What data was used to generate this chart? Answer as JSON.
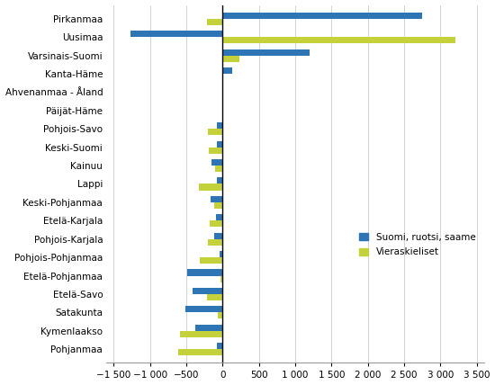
{
  "categories": [
    "Pirkanmaa",
    "Uusimaa",
    "Varsinais-Suomi",
    "Kanta-Häme",
    "Ahvenanmaa - Åland",
    "Päijät-Häme",
    "Pohjois-Savo",
    "Keski-Suomi",
    "Kainuu",
    "Lappi",
    "Keski-Pohjanmaa",
    "Etelä-Karjala",
    "Pohjois-Karjala",
    "Pohjois-Pohjanmaa",
    "Etelä-Pohjanmaa",
    "Etelä-Savo",
    "Satakunta",
    "Kymenlaakso",
    "Pohjanmaa"
  ],
  "suomi": [
    2750,
    -1270,
    1200,
    125,
    0,
    0,
    -75,
    -80,
    -155,
    -85,
    -170,
    -90,
    -120,
    -45,
    -490,
    -420,
    -510,
    -380,
    -85
  ],
  "vieras": [
    -215,
    3200,
    235,
    12,
    3,
    -2,
    -205,
    -195,
    -100,
    -325,
    -120,
    -175,
    -200,
    -310,
    -35,
    -215,
    -70,
    -590,
    -610
  ],
  "color_suomi": "#2E75B6",
  "color_vieras": "#C5D13B",
  "legend_suomi": "Suomi, ruotsi, saame",
  "legend_vieras": "Vieraskieliset",
  "background_color": "#ffffff",
  "xlim": [
    -1600,
    3600
  ],
  "xticks": [
    -1500,
    -1000,
    -500,
    0,
    500,
    1000,
    1500,
    2000,
    2500,
    3000,
    3500
  ],
  "bar_height": 0.35,
  "bar_gap": 0.35
}
